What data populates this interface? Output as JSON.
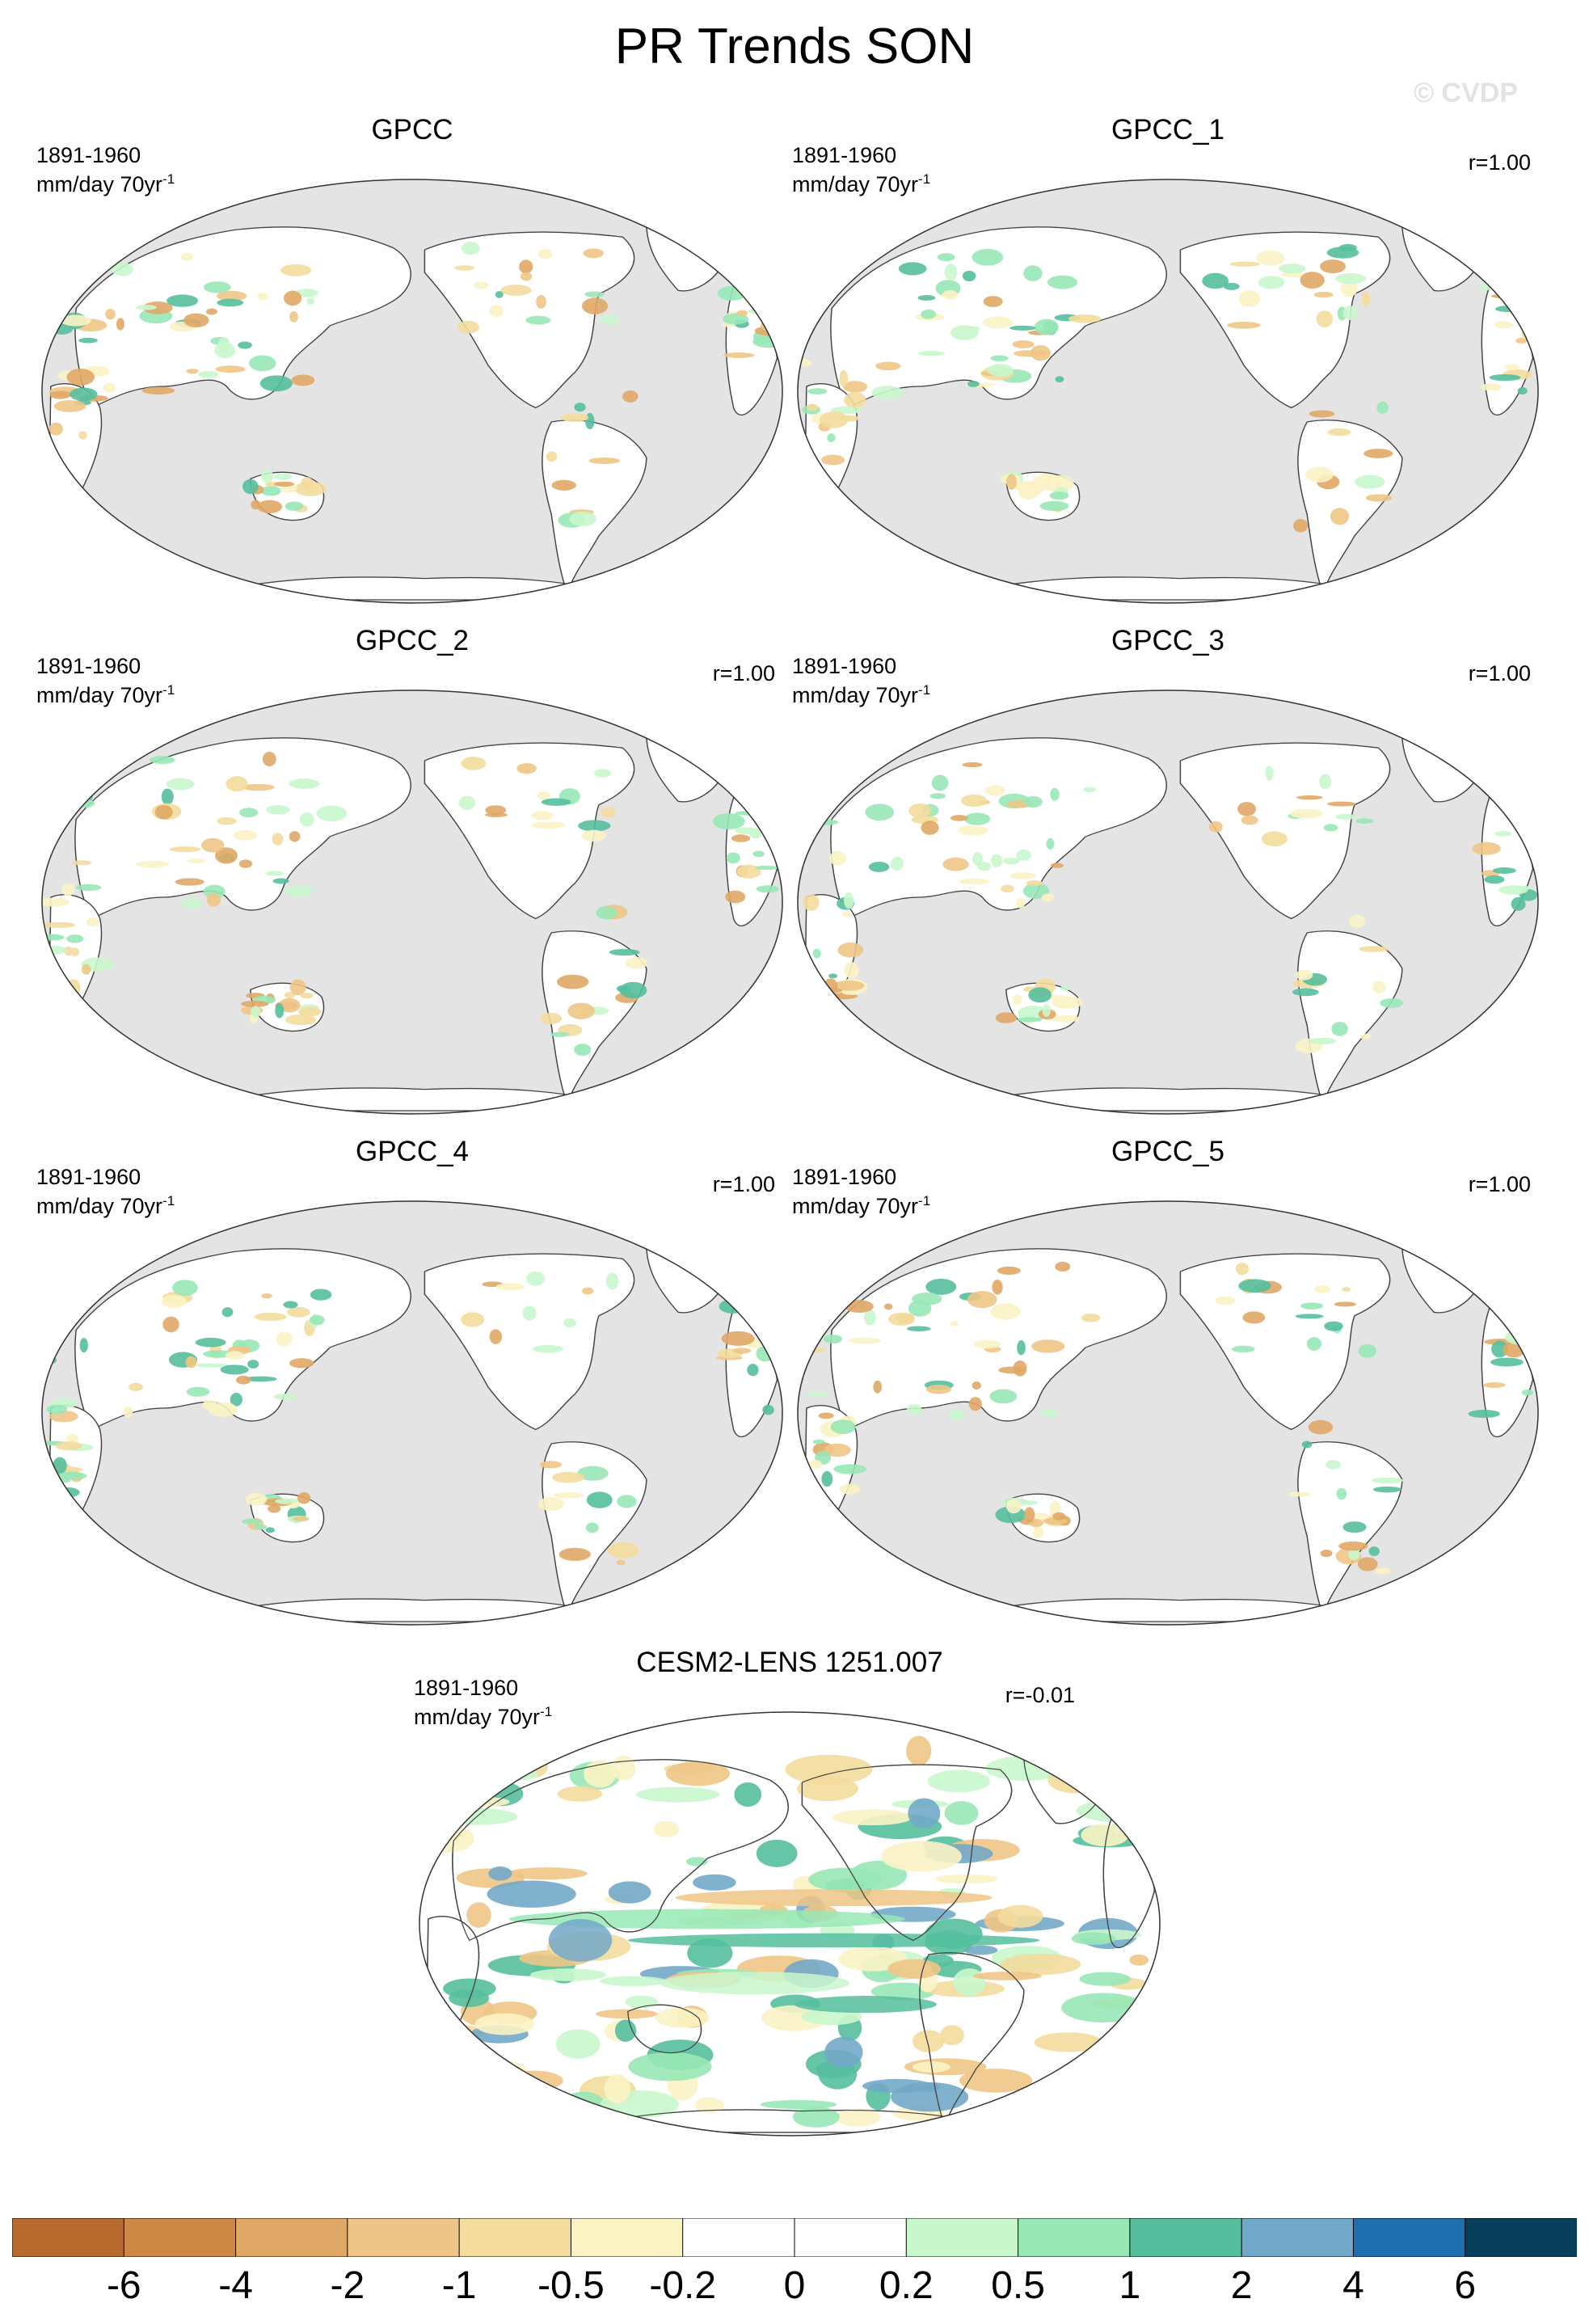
{
  "title": "PR Trends SON",
  "watermark": "© CVDP",
  "period": "1891-1960",
  "units_base": "mm/day 70yr",
  "units_exp": "-1",
  "colors": {
    "ocean": "#e4e4e4",
    "land": "#ffffff",
    "coast": "#444444"
  },
  "panels": [
    {
      "id": "gpcc",
      "title": "GPCC",
      "corr": ""
    },
    {
      "id": "gpcc1",
      "title": "GPCC_1",
      "corr": "r=1.00"
    },
    {
      "id": "gpcc2",
      "title": "GPCC_2",
      "corr": "r=1.00"
    },
    {
      "id": "gpcc3",
      "title": "GPCC_3",
      "corr": "r=1.00"
    },
    {
      "id": "gpcc4",
      "title": "GPCC_4",
      "corr": "r=1.00"
    },
    {
      "id": "gpcc5",
      "title": "GPCC_5",
      "corr": "r=1.00"
    },
    {
      "id": "cesm",
      "title": "CESM2-LENS 1251.007",
      "corr": "r=-0.01"
    }
  ],
  "colorbar": {
    "labels": [
      "-6",
      "-4",
      "-2",
      "-1",
      "-0.5",
      "-0.2",
      "0",
      "0.2",
      "0.5",
      "1",
      "2",
      "4",
      "6"
    ],
    "colors": [
      "#b8692e",
      "#cc8844",
      "#e0a866",
      "#eec586",
      "#f3dc9c",
      "#fbf3c4",
      "#ffffff",
      "#ffffff",
      "#c9f7cc",
      "#98e8b6",
      "#55bf9d",
      "#72a8c8",
      "#1f6fae",
      "#08405c"
    ]
  }
}
